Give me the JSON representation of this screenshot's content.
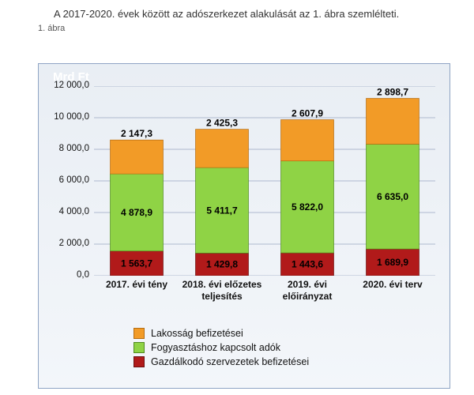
{
  "intro_text": "A 2017-2020. évek között az adószerkezet alakulását az 1. ábra szem­lélteti.",
  "figure_label": "1. ábra",
  "chart": {
    "type": "stacked-bar",
    "y_unit": "Mrd Ft",
    "ylim": [
      0,
      12000
    ],
    "ytick_step": 2000,
    "yticks": [
      "0,0",
      "2 000,0",
      "4 000,0",
      "6 000,0",
      "8 000,0",
      "10 000,0",
      "12 000,0"
    ],
    "categories": [
      "2017. évi tény",
      "2018. évi előzetes teljesítés",
      "2019. évi előirányzat",
      "2020. évi terv"
    ],
    "series": [
      {
        "name": "Gazdálkodó szervezetek befizetései",
        "fill": "#b11a1a",
        "stroke": "#6a0f0f",
        "marker_fill": "#b11a1a",
        "values": [
          1563.7,
          1429.8,
          1443.6,
          1689.9
        ],
        "labels": [
          "1 563,7",
          "1 429,8",
          "1 443,6",
          "1 689,9"
        ]
      },
      {
        "name": "Fogyasztáshoz kapcsolt adók",
        "fill": "#8fd345",
        "stroke": "#4f8a1e",
        "marker_fill": "#8fd345",
        "values": [
          4878.9,
          5411.7,
          5822.0,
          6635.0
        ],
        "labels": [
          "4 878,9",
          "5 411,7",
          "5 822,0",
          "6 635,0"
        ]
      },
      {
        "name": "Lakosság befizetései",
        "fill": "#f29b27",
        "stroke": "#b46c12",
        "marker_fill": "#f29b27",
        "values": [
          2147.3,
          2425.3,
          2607.9,
          2898.7
        ],
        "labels": [
          "2 147,3",
          "2 425,3",
          "2 607,9",
          "2 898,7"
        ]
      }
    ],
    "background_gradient": [
      "#e9eef4",
      "#f3f6fa"
    ],
    "grid_color": "#aeb9cf",
    "border_color": "#8fa4c4",
    "bar_width": 0.62,
    "label_fontsize": 12,
    "ytick_fontsize": 11.5,
    "xtick_fontsize": 12,
    "legend_order": [
      "Lakosság befizetései",
      "Fogyasztáshoz kapcsolt adók",
      "Gazdálkodó szervezetek befizetései"
    ]
  }
}
